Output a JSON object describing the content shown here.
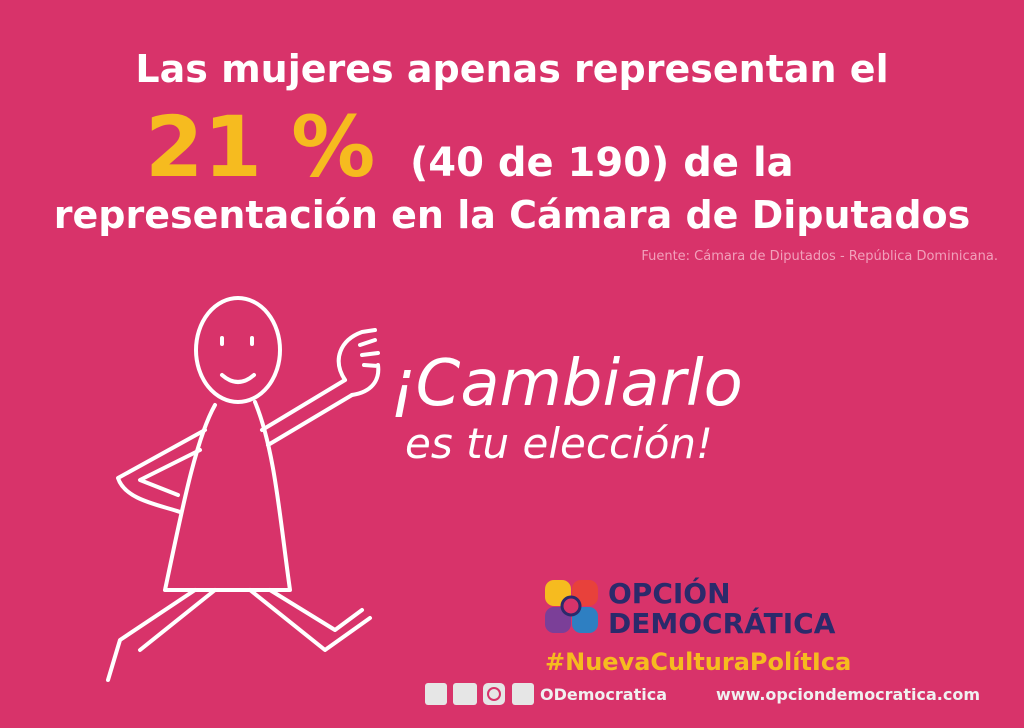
{
  "headline": {
    "line1": "Las mujeres apenas representan el",
    "percent": "21 %",
    "line2_rest": "(40 de 190) de la",
    "line3": "representación en la Cámara de Diputados"
  },
  "source": "Fuente: Cámara de Diputados - República Dominicana.",
  "slogan": {
    "line1": "¡Cambiarlo",
    "line2": "es tu elección!"
  },
  "logo": {
    "line1": "OPCIÓN",
    "line2": "DEMOCRÁTICA"
  },
  "hashtag": "#NuevaCulturaPolítIca",
  "footer": {
    "handle": "ODemocratica",
    "website": "www.opciondemocratica.com"
  }
}
